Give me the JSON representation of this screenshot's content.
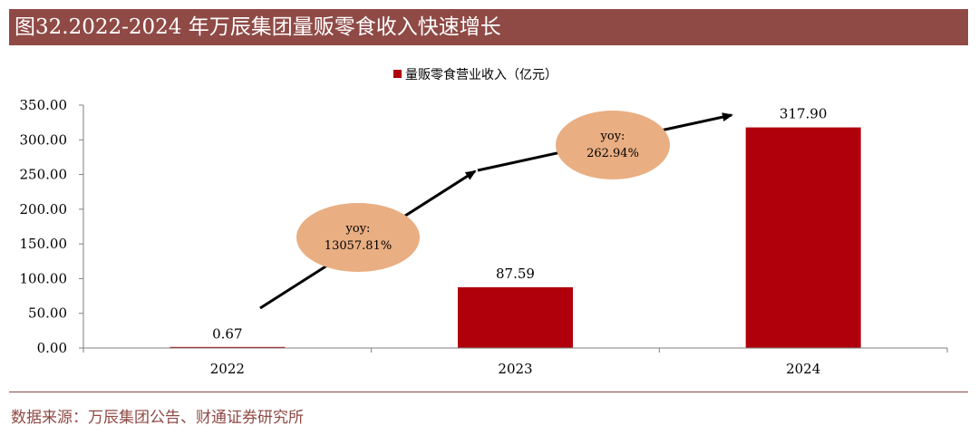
{
  "header": {
    "title": "图32.2022-2024 年万辰集团量贩零食收入快速增长"
  },
  "footer": {
    "source": "数据来源：万辰集团公告、财通证券研究所"
  },
  "colors": {
    "title_bg": "#8f4a46",
    "bar": "#b0000b",
    "bubble": "#e9ae82",
    "arrow": "#000000"
  },
  "chart_data": {
    "type": "bar",
    "categories": [
      "2022",
      "2023",
      "2024"
    ],
    "series": [
      {
        "name": "量贩零食营业收入（亿元）",
        "values": [
          0.67,
          87.59,
          317.9
        ]
      }
    ],
    "value_labels": [
      "0.67",
      "87.59",
      "317.90"
    ],
    "ylim": [
      0,
      350
    ],
    "yticks": [
      "0.00",
      "50.00",
      "100.00",
      "150.00",
      "200.00",
      "250.00",
      "300.00",
      "350.00"
    ],
    "legend": "top-center",
    "grid": false,
    "annotations": [
      {
        "line1": "yoy:",
        "line2": "13057.81%"
      },
      {
        "line1": "yoy:",
        "line2": "262.94%"
      }
    ]
  }
}
